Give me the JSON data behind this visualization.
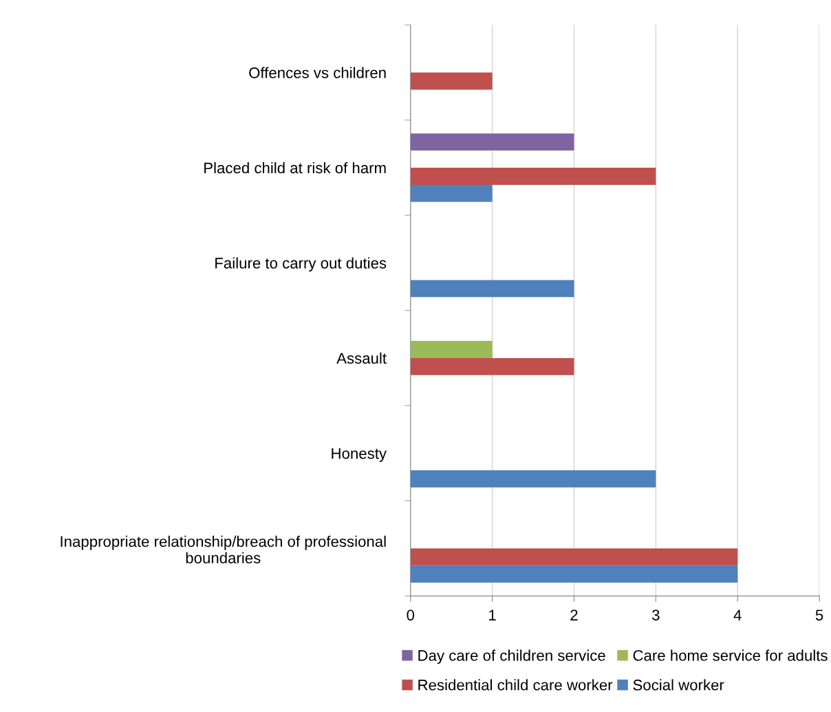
{
  "chart_data": {
    "type": "bar",
    "orientation": "horizontal",
    "categories": [
      "Offences vs children",
      "Placed child at risk of harm",
      "Failure to carry out duties",
      "Assault",
      "Honesty",
      "Inappropriate relationship/breach of professional boundaries"
    ],
    "series": [
      {
        "name": "Day care of children service",
        "color": "#8064a2",
        "values": [
          null,
          2,
          null,
          null,
          null,
          null
        ]
      },
      {
        "name": "Care home service for adults",
        "color": "#9bbb59",
        "values": [
          null,
          null,
          null,
          1,
          null,
          null
        ]
      },
      {
        "name": "Residential child care worker",
        "color": "#c0504d",
        "values": [
          1,
          3,
          null,
          2,
          null,
          4
        ]
      },
      {
        "name": "Social worker",
        "color": "#4f81bd",
        "values": [
          null,
          1,
          2,
          null,
          3,
          4
        ]
      }
    ],
    "xlim": [
      0,
      5
    ],
    "xticks": [
      0,
      1,
      2,
      3,
      4,
      5
    ],
    "grid": "x",
    "legend": "bottom"
  }
}
